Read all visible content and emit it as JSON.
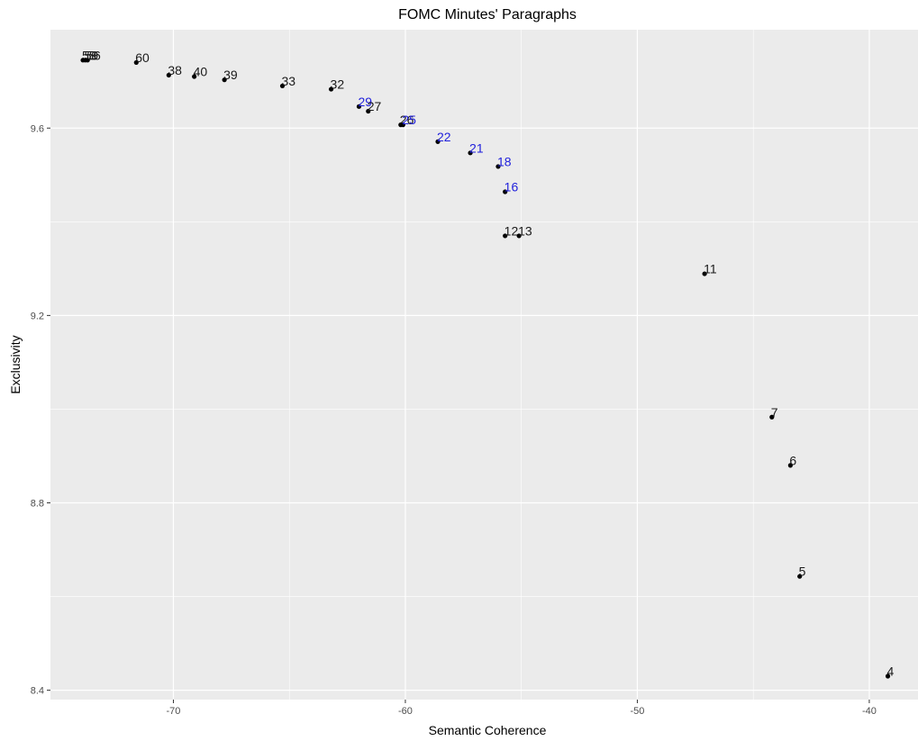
{
  "chart_data": {
    "type": "scatter",
    "title": "FOMC Minutes' Paragraphs",
    "xlabel": "Semantic Coherence",
    "ylabel": "Exclusivity",
    "xlim": [
      -75.3,
      -37.9
    ],
    "ylim": [
      8.38,
      9.81
    ],
    "x_ticks": [
      -70,
      -60,
      -50,
      -40
    ],
    "x_tick_labels": [
      "-70",
      "-60",
      "-50",
      "-40"
    ],
    "y_ticks": [
      8.4,
      8.8,
      9.2,
      9.6
    ],
    "y_tick_labels": [
      "8.4",
      "8.8",
      "9.2",
      "9.6"
    ],
    "grid": true,
    "colors": {
      "panel": "#ebebeb",
      "grid": "#ffffff",
      "point": "#000000",
      "label": "#1a1a1a",
      "highlight": "#1f1fdc"
    },
    "points": [
      {
        "label": "58",
        "x": -73.9,
        "y": 9.745,
        "highlight": false
      },
      {
        "label": "59",
        "x": -73.8,
        "y": 9.745,
        "highlight": false
      },
      {
        "label": "56",
        "x": -73.7,
        "y": 9.745,
        "highlight": false
      },
      {
        "label": "60",
        "x": -71.6,
        "y": 9.74,
        "highlight": false
      },
      {
        "label": "38",
        "x": -70.2,
        "y": 9.713,
        "highlight": false
      },
      {
        "label": "40",
        "x": -69.1,
        "y": 9.71,
        "highlight": false
      },
      {
        "label": "39",
        "x": -67.8,
        "y": 9.703,
        "highlight": false
      },
      {
        "label": "33",
        "x": -65.3,
        "y": 9.69,
        "highlight": false
      },
      {
        "label": "32",
        "x": -63.2,
        "y": 9.683,
        "highlight": false
      },
      {
        "label": "29",
        "x": -62.0,
        "y": 9.646,
        "highlight": true
      },
      {
        "label": "27",
        "x": -61.6,
        "y": 9.636,
        "highlight": false
      },
      {
        "label": "26",
        "x": -60.2,
        "y": 9.607,
        "highlight": false
      },
      {
        "label": "25",
        "x": -60.1,
        "y": 9.607,
        "highlight": true
      },
      {
        "label": "22",
        "x": -58.6,
        "y": 9.571,
        "highlight": true
      },
      {
        "label": "21",
        "x": -57.2,
        "y": 9.547,
        "highlight": true
      },
      {
        "label": "18",
        "x": -56.0,
        "y": 9.518,
        "highlight": true
      },
      {
        "label": "16",
        "x": -55.7,
        "y": 9.464,
        "highlight": true
      },
      {
        "label": "12",
        "x": -55.7,
        "y": 9.37,
        "highlight": false
      },
      {
        "label": "13",
        "x": -55.1,
        "y": 9.37,
        "highlight": false
      },
      {
        "label": "11",
        "x": -47.1,
        "y": 9.289,
        "highlight": false
      },
      {
        "label": "7",
        "x": -44.2,
        "y": 8.983,
        "highlight": false
      },
      {
        "label": "6",
        "x": -43.4,
        "y": 8.88,
        "highlight": false
      },
      {
        "label": "5",
        "x": -43.0,
        "y": 8.643,
        "highlight": false
      },
      {
        "label": "4",
        "x": -39.2,
        "y": 8.43,
        "highlight": false
      }
    ]
  }
}
